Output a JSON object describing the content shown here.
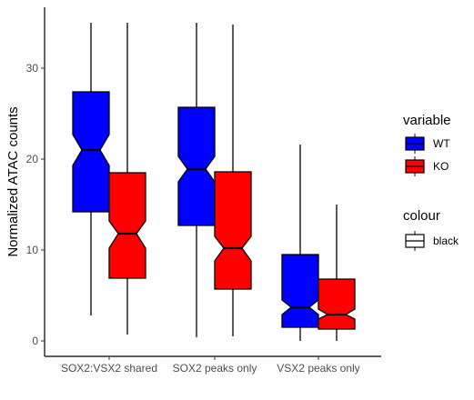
{
  "chart_data": {
    "type": "boxplot",
    "notched": true,
    "xlabel": "",
    "ylabel": "Normalized ATAC counts",
    "ylim": [
      -1.8,
      36.5
    ],
    "yticks": [
      0,
      10,
      20,
      30
    ],
    "grid": false,
    "categories": [
      "SOX2:VSX2 shared",
      "SOX2 peaks only",
      "VSX2 peaks only"
    ],
    "series": [
      {
        "name": "WT",
        "color": "#0000ff",
        "boxes": [
          {
            "min": 2.8,
            "q1": 14.2,
            "median": 21.0,
            "q3": 27.4,
            "max": 35.0,
            "notch_low": 19.3,
            "notch_high": 22.7
          },
          {
            "min": 0.4,
            "q1": 12.7,
            "median": 18.9,
            "q3": 25.7,
            "max": 35.0,
            "notch_low": 17.5,
            "notch_high": 20.3
          },
          {
            "min": 0.0,
            "q1": 1.5,
            "median": 3.7,
            "q3": 9.5,
            "max": 21.6,
            "notch_low": 2.9,
            "notch_high": 4.5
          }
        ]
      },
      {
        "name": "KO",
        "color": "#ff0000",
        "boxes": [
          {
            "min": 0.7,
            "q1": 6.9,
            "median": 11.8,
            "q3": 18.5,
            "max": 35.0,
            "notch_low": 10.2,
            "notch_high": 13.2
          },
          {
            "min": 0.5,
            "q1": 5.7,
            "median": 10.2,
            "q3": 18.6,
            "max": 34.8,
            "notch_low": 8.8,
            "notch_high": 11.5
          },
          {
            "min": 0.0,
            "q1": 1.3,
            "median": 2.9,
            "q3": 6.8,
            "max": 15.0,
            "notch_low": 2.4,
            "notch_high": 3.5
          }
        ]
      }
    ],
    "legend": {
      "placement": "right",
      "variable_title": "variable",
      "colour_title": "colour",
      "colour_label": "black"
    }
  }
}
